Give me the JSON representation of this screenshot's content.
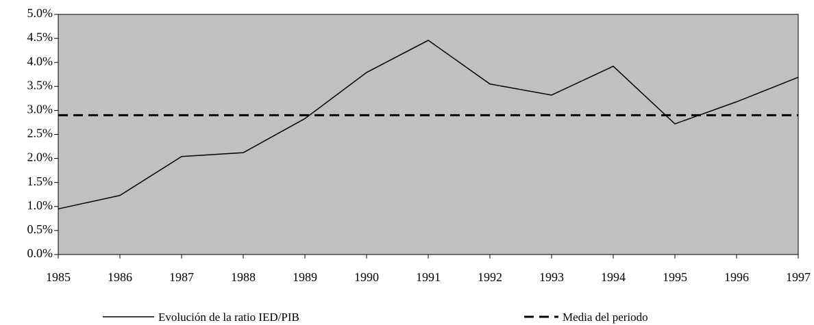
{
  "chart_data": {
    "type": "line",
    "categories": [
      "1985",
      "1986",
      "1987",
      "1988",
      "1989",
      "1990",
      "1991",
      "1992",
      "1993",
      "1994",
      "1995",
      "1996",
      "1997"
    ],
    "series": [
      {
        "name": "Evolución de la ratio IED/PIB",
        "color": "#000000",
        "dash": false,
        "values": [
          0.95,
          1.23,
          2.04,
          2.12,
          2.83,
          3.79,
          4.46,
          3.55,
          3.32,
          3.92,
          2.72,
          3.18,
          3.69
        ]
      },
      {
        "name": "Media del periodo",
        "color": "#000000",
        "dash": true,
        "values": [
          2.9,
          2.9,
          2.9,
          2.9,
          2.9,
          2.9,
          2.9,
          2.9,
          2.9,
          2.9,
          2.9,
          2.9,
          2.9
        ]
      }
    ],
    "ylim": [
      0,
      5
    ],
    "yticks": [
      {
        "value": 0,
        "label": "0.0%"
      },
      {
        "value": 0.5,
        "label": "0.5%"
      },
      {
        "value": 1,
        "label": "1.0%"
      },
      {
        "value": 1.5,
        "label": "1.5%"
      },
      {
        "value": 2,
        "label": "2.0%"
      },
      {
        "value": 2.5,
        "label": "2.5%"
      },
      {
        "value": 3,
        "label": "3.0%"
      },
      {
        "value": 3.5,
        "label": "3.5%"
      },
      {
        "value": 4,
        "label": "4.0%"
      },
      {
        "value": 4.5,
        "label": "4.5%"
      },
      {
        "value": 5,
        "label": "5.0%"
      }
    ],
    "plot_background": "#c0c0c0",
    "legend": "bottom"
  }
}
